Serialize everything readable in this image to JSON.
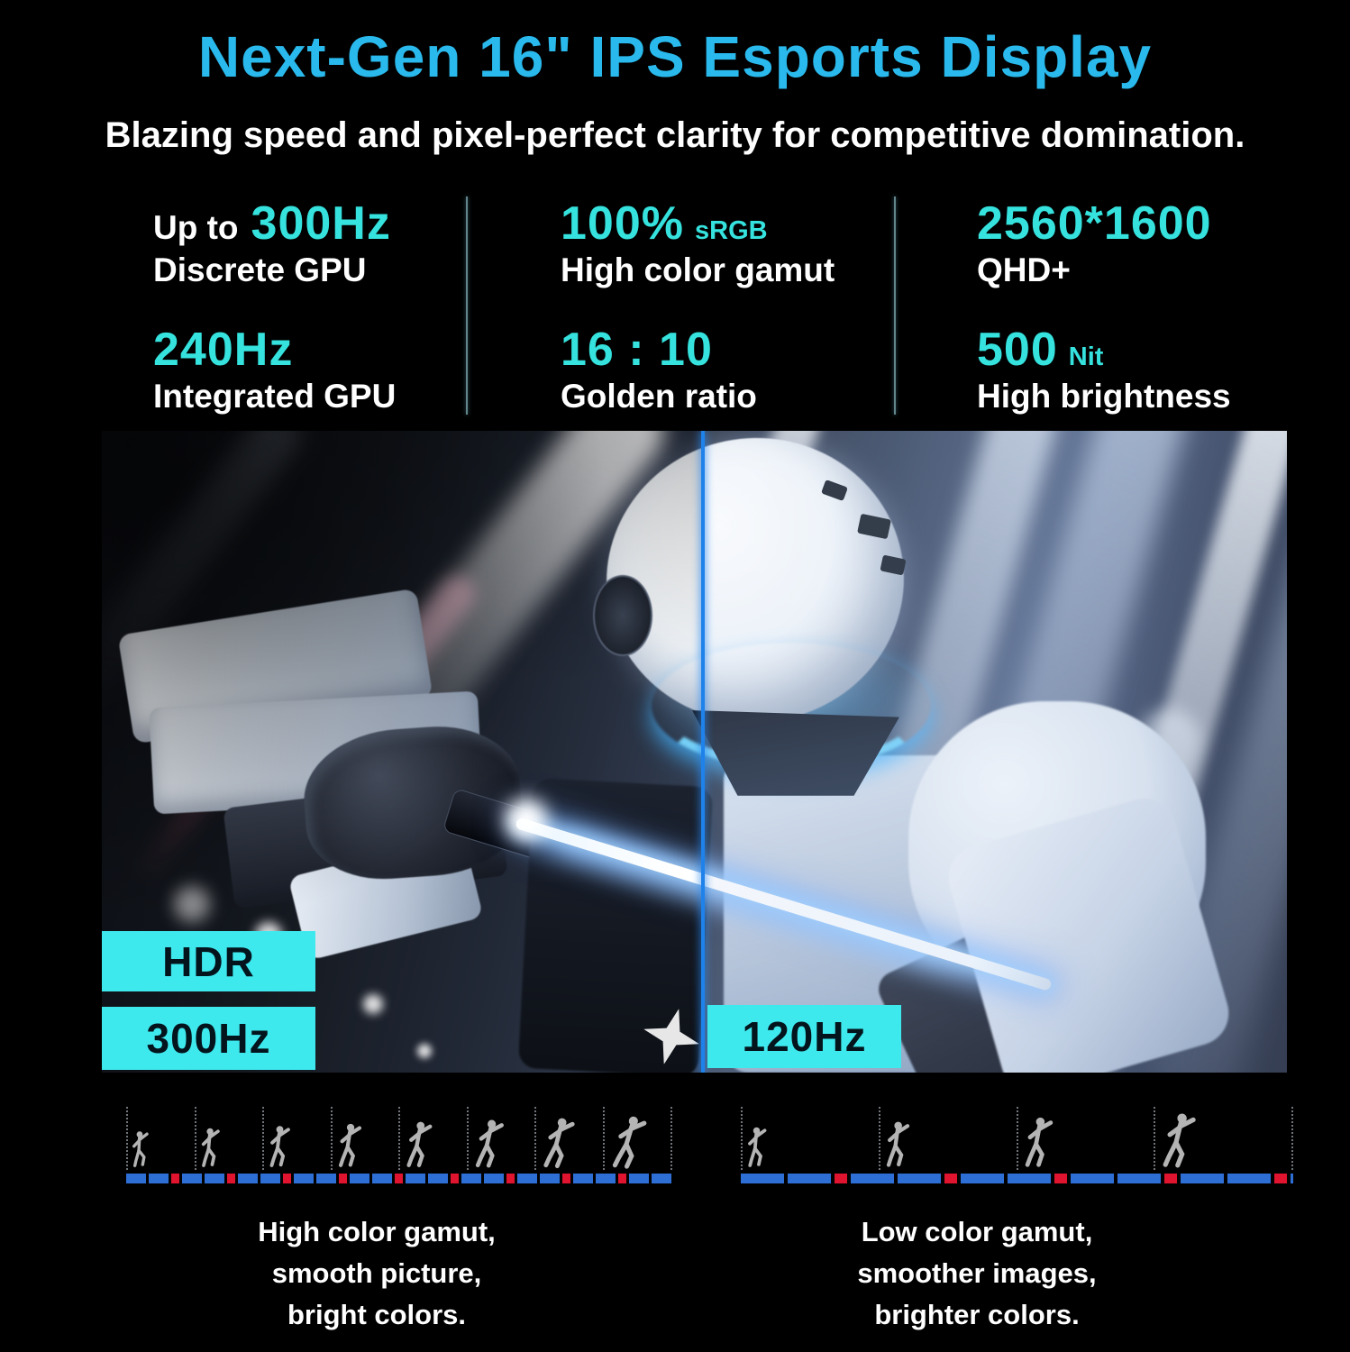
{
  "title": "Next-Gen 16\" IPS Esports Display",
  "subtitle": "Blazing speed and pixel-perfect clarity for competitive domination.",
  "specs": {
    "columns": [
      {
        "items": [
          {
            "prefix": "Up to",
            "value": "300Hz",
            "suffix": "",
            "label": "Discrete GPU"
          },
          {
            "prefix": "",
            "value": "240Hz",
            "suffix": "",
            "label": "Integrated GPU"
          }
        ]
      },
      {
        "items": [
          {
            "prefix": "",
            "value": "100%",
            "suffix": "sRGB",
            "label": "High color gamut"
          },
          {
            "prefix": "",
            "value": "16 : 10",
            "suffix": "",
            "label": "Golden ratio"
          }
        ]
      },
      {
        "items": [
          {
            "prefix": "",
            "value": "2560*1600",
            "suffix": "",
            "label": "QHD+"
          },
          {
            "prefix": "",
            "value": "500",
            "suffix": "Nit",
            "label": "High brightness"
          }
        ]
      }
    ]
  },
  "hero": {
    "badges": {
      "hdr": "HDR",
      "left_rate": "300Hz",
      "right_rate": "120Hz"
    }
  },
  "strips": {
    "left": {
      "frame_count": 8,
      "caption_lines": [
        "High color gamut,",
        "smooth picture,",
        "bright colors."
      ]
    },
    "right": {
      "frame_count": 4,
      "caption_lines": [
        "Low color gamut,",
        "smoother images,",
        "brighter colors."
      ]
    }
  },
  "colors": {
    "accent_sky": "#2ab9ec",
    "accent_cyan": "#35e2dd",
    "badge_bg": "#3ee9ee",
    "badge_text": "#03141c",
    "split_blue": "#1e82ea",
    "bar_blue": "#2e6fd6",
    "bar_red": "#e0142e",
    "figure_gray": "#b4b4b4"
  }
}
